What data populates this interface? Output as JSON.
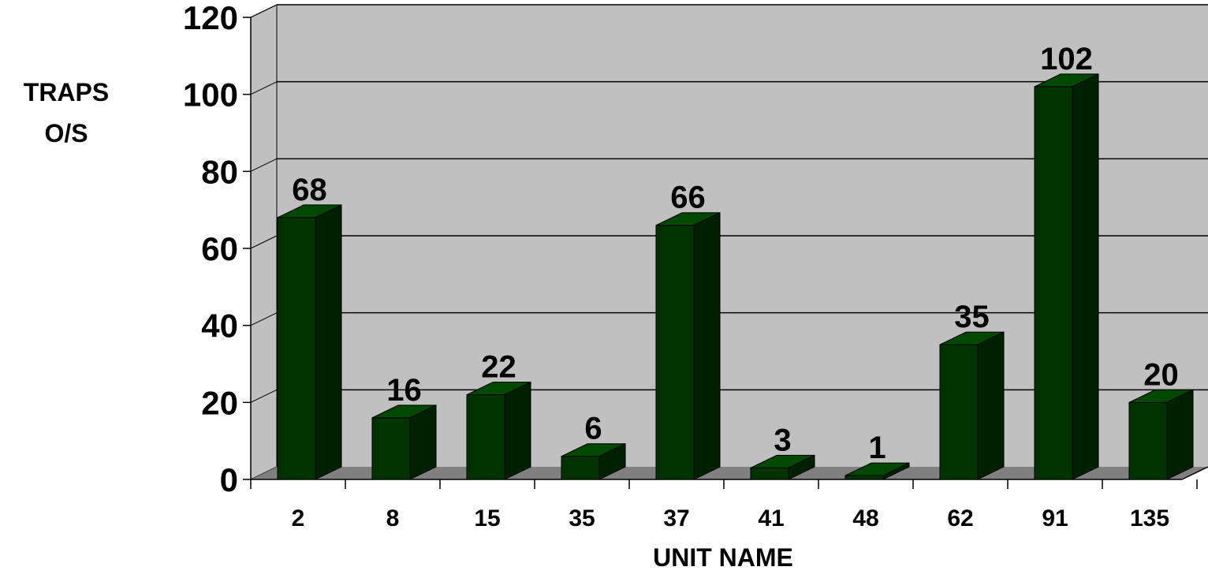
{
  "chart_data": {
    "type": "bar",
    "title": "",
    "xlabel": "UNIT NAME",
    "ylabel_lines": [
      "TRAPS",
      "O/S"
    ],
    "categories": [
      "2",
      "8",
      "15",
      "35",
      "37",
      "41",
      "48",
      "62",
      "91",
      "135"
    ],
    "values": [
      68,
      16,
      22,
      6,
      66,
      3,
      1,
      35,
      102,
      20
    ],
    "data_labels": [
      "68",
      "16",
      "22",
      "6",
      "66",
      "3",
      "1",
      "35",
      "102",
      "20"
    ],
    "y_ticks": [
      "0",
      "20",
      "40",
      "60",
      "80",
      "100",
      "120"
    ],
    "ylim": [
      0,
      120
    ],
    "grid": true,
    "legend": "none",
    "style": "3d-column",
    "colors": {
      "bar_front": "#003300",
      "bar_top": "#004800",
      "bar_side": "#002100",
      "plot_wall": "#c0c0c0",
      "floor": "#808080",
      "gridline": "#000000"
    }
  }
}
